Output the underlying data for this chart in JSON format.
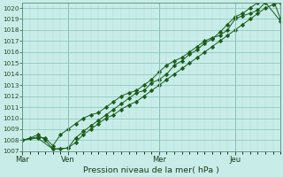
{
  "xlabel": "Pression niveau de la mer( hPa )",
  "bg_color": "#c8ede8",
  "grid_major_color": "#8abfb8",
  "grid_minor_color": "#b0d8d2",
  "line_color": "#1a5c1a",
  "marker_color": "#1a5c1a",
  "ylim": [
    1007,
    1020.5
  ],
  "ytick_min": 1007,
  "ytick_max": 1020,
  "day_labels": [
    "Mar",
    "Ven",
    "Mer",
    "Jeu"
  ],
  "day_positions": [
    0,
    3,
    9,
    14
  ],
  "total_steps": 17,
  "series1_x": [
    0,
    0.5,
    1,
    1.5,
    2,
    2.5,
    3,
    3.5,
    4,
    4.5,
    5,
    5.5,
    6,
    6.5,
    7,
    7.5,
    8,
    8.5,
    9,
    9.5,
    10,
    10.5,
    11,
    11.5,
    12,
    12.5,
    13,
    13.5,
    14,
    14.5,
    15,
    15.5,
    16,
    16.5,
    17
  ],
  "series1_y": [
    1008.0,
    1008.2,
    1008.5,
    1008.0,
    1007.2,
    1007.2,
    1007.3,
    1007.8,
    1008.5,
    1009.0,
    1009.5,
    1010.0,
    1010.3,
    1010.8,
    1011.2,
    1011.5,
    1012.0,
    1012.5,
    1013.0,
    1013.5,
    1014.0,
    1014.5,
    1015.0,
    1015.5,
    1016.0,
    1016.5,
    1017.0,
    1017.5,
    1018.0,
    1018.5,
    1019.0,
    1019.5,
    1020.0,
    1020.3,
    1020.5
  ],
  "series2_x": [
    0,
    1,
    2,
    3,
    3.5,
    4,
    4.5,
    5,
    5.5,
    6,
    6.5,
    7,
    7.5,
    8,
    8.5,
    9,
    9.5,
    10,
    10.5,
    11,
    11.5,
    12,
    12.5,
    13,
    13.5,
    14,
    14.5,
    15,
    15.5,
    16,
    16.5,
    17
  ],
  "series2_y": [
    1008.0,
    1008.2,
    1007.2,
    1007.3,
    1008.2,
    1008.8,
    1009.3,
    1009.8,
    1010.3,
    1010.8,
    1011.3,
    1011.8,
    1012.3,
    1012.5,
    1013.2,
    1013.5,
    1014.0,
    1014.8,
    1015.2,
    1015.8,
    1016.2,
    1016.8,
    1017.2,
    1017.8,
    1018.5,
    1019.2,
    1019.5,
    1020.0,
    1020.5,
    1021.0,
    1020.8,
    1019.0
  ],
  "series3_x": [
    0,
    1,
    1.5,
    2,
    2.5,
    3,
    3.5,
    4,
    4.5,
    5,
    5.5,
    6,
    6.5,
    7,
    7.5,
    8,
    8.5,
    9,
    9.5,
    10,
    10.5,
    11,
    11.5,
    12,
    12.5,
    13,
    13.5,
    14,
    14.5,
    15,
    15.5,
    16,
    17
  ],
  "series3_y": [
    1008.0,
    1008.3,
    1008.2,
    1007.5,
    1008.5,
    1009.0,
    1009.5,
    1010.0,
    1010.3,
    1010.5,
    1011.0,
    1011.5,
    1012.0,
    1012.3,
    1012.5,
    1013.0,
    1013.5,
    1014.2,
    1014.8,
    1015.2,
    1015.5,
    1016.0,
    1016.5,
    1017.0,
    1017.3,
    1017.5,
    1018.0,
    1019.0,
    1019.3,
    1019.5,
    1019.8,
    1020.5,
    1018.8
  ]
}
